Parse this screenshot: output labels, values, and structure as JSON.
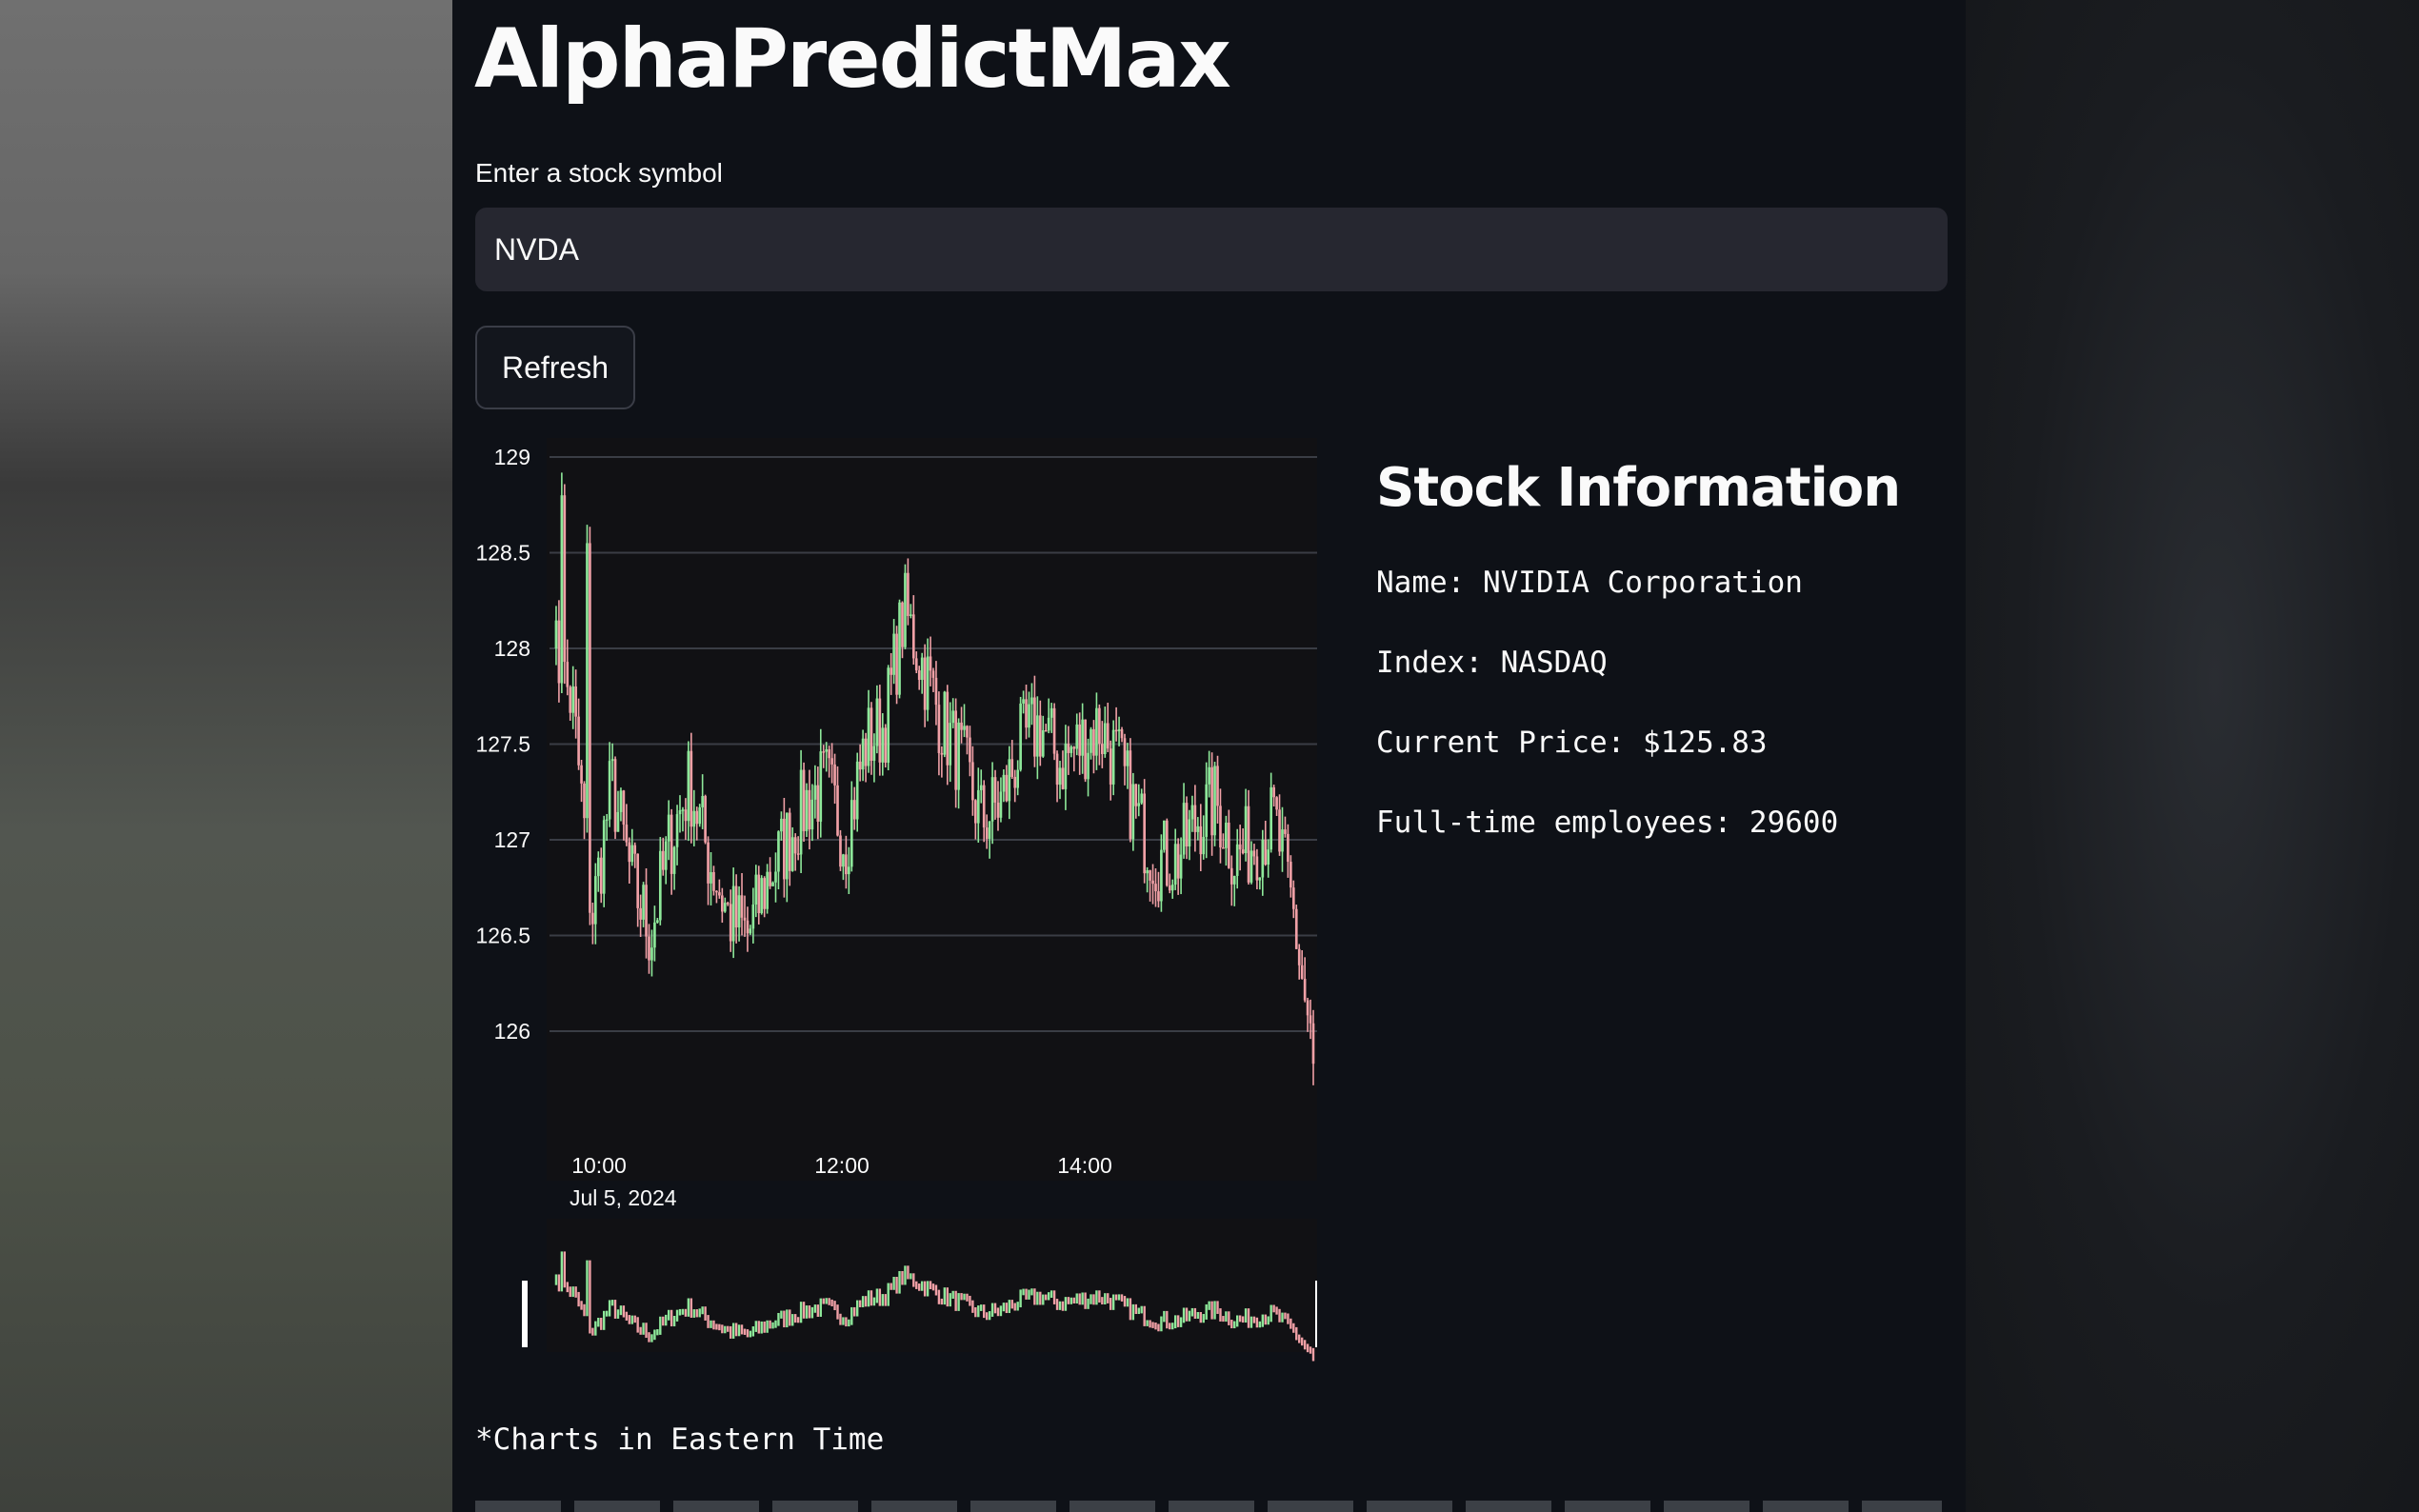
{
  "app": {
    "title": "AlphaPredictMax"
  },
  "symbol": {
    "label": "Enter a stock symbol",
    "value": "NVDA"
  },
  "refresh": {
    "label": "Refresh"
  },
  "info": {
    "heading": "Stock Information",
    "name_line": "Name: NVIDIA Corporation",
    "index_line": "Index: NASDAQ",
    "price_line": "Current Price: $125.83",
    "employees_line": "Full-time employees: 29600"
  },
  "footnote": "*Charts in Eastern Time",
  "colors": {
    "up": "#8ee89a",
    "down": "#f0a0a6",
    "background": "#0e1117",
    "plot": "#111114"
  },
  "chart_data": {
    "type": "candlestick",
    "title": "",
    "xlabel": "",
    "ylabel": "",
    "ylim": [
      125.6,
      129
    ],
    "y_ticks": [
      "129",
      "128.5",
      "128",
      "127.5",
      "127",
      "126.5",
      "126"
    ],
    "x_ticks": [
      "10:00",
      "12:00",
      "14:00"
    ],
    "x_date_label": "Jul 5, 2024",
    "grid": true,
    "range_slider": true,
    "x": [
      "09:30",
      "09:40",
      "09:50",
      "10:00",
      "10:10",
      "10:20",
      "10:30",
      "10:40",
      "10:50",
      "11:00",
      "11:10",
      "11:20",
      "11:30",
      "11:40",
      "11:50",
      "12:00",
      "12:10",
      "12:20",
      "12:30",
      "12:40",
      "12:50",
      "13:00",
      "13:10",
      "13:20",
      "13:30",
      "13:40",
      "13:50",
      "14:00",
      "14:10",
      "14:20",
      "14:30",
      "14:40",
      "14:50",
      "15:00",
      "15:10",
      "15:20",
      "15:30",
      "15:40",
      "15:50",
      "16:00"
    ],
    "close": [
      128.0,
      127.7,
      126.6,
      127.3,
      126.8,
      126.5,
      127.0,
      127.3,
      126.9,
      126.6,
      126.5,
      126.8,
      127.0,
      127.2,
      127.3,
      127.0,
      127.5,
      127.6,
      128.2,
      127.9,
      127.6,
      127.4,
      127.1,
      127.2,
      127.5,
      127.6,
      127.4,
      127.5,
      127.6,
      127.4,
      127.1,
      126.9,
      126.9,
      127.1,
      127.2,
      126.9,
      127.0,
      127.1,
      126.6,
      125.83
    ]
  }
}
